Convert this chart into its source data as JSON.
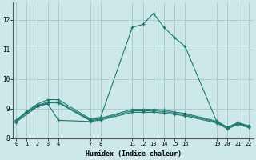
{
  "xlabel": "Humidex (Indice chaleur)",
  "background_color": "#cde8e8",
  "grid_color": "#aacccc",
  "line_color": "#1a7a6e",
  "series": [
    {
      "x": [
        0,
        1,
        2,
        3,
        4,
        7,
        8,
        11,
        12,
        13,
        14,
        15,
        16,
        19,
        20,
        21,
        22
      ],
      "y": [
        8.6,
        8.9,
        9.15,
        9.3,
        9.3,
        8.65,
        8.7,
        11.75,
        11.85,
        12.22,
        11.75,
        11.4,
        11.1,
        8.55,
        8.35,
        8.5,
        8.4
      ]
    },
    {
      "x": [
        0,
        1,
        2,
        3,
        4,
        7,
        8,
        11,
        12,
        13,
        14,
        15,
        16,
        19,
        20,
        21,
        22
      ],
      "y": [
        8.58,
        8.88,
        9.1,
        9.22,
        9.22,
        8.62,
        8.67,
        8.97,
        8.97,
        8.97,
        8.95,
        8.88,
        8.83,
        8.57,
        8.37,
        8.52,
        8.42
      ]
    },
    {
      "x": [
        0,
        1,
        2,
        3,
        4,
        7,
        8,
        11,
        12,
        13,
        14,
        15,
        16,
        19,
        20,
        21,
        22
      ],
      "y": [
        8.56,
        8.86,
        9.08,
        9.19,
        9.19,
        8.59,
        8.64,
        8.92,
        8.92,
        8.92,
        8.9,
        8.84,
        8.79,
        8.54,
        8.34,
        8.49,
        8.39
      ]
    },
    {
      "x": [
        0,
        2,
        3,
        4,
        7,
        8,
        11,
        12,
        13,
        14,
        15,
        16,
        19,
        20,
        21,
        22
      ],
      "y": [
        8.54,
        9.06,
        9.16,
        8.6,
        8.56,
        8.61,
        8.87,
        8.87,
        8.87,
        8.85,
        8.8,
        8.75,
        8.51,
        8.31,
        8.46,
        8.36
      ]
    }
  ],
  "ylim": [
    8.0,
    12.6
  ],
  "yticks": [
    8,
    9,
    10,
    11,
    12
  ],
  "xlim": [
    -0.3,
    22.5
  ],
  "xticks": [
    0,
    1,
    2,
    3,
    4,
    7,
    8,
    11,
    12,
    13,
    14,
    15,
    16,
    19,
    20,
    21,
    22
  ]
}
